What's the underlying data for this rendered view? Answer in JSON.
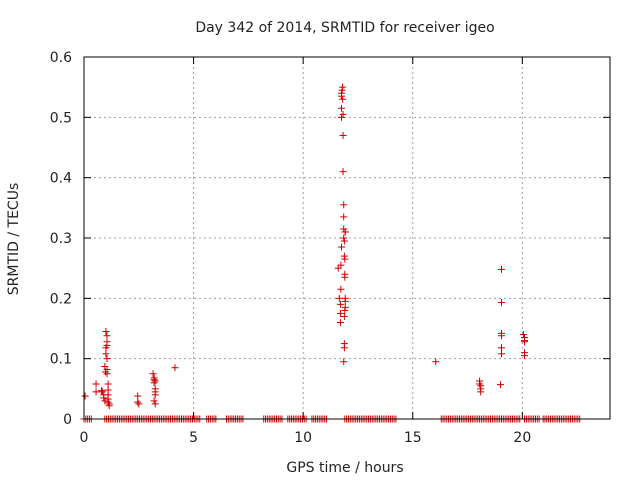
{
  "chart_data": {
    "type": "scatter",
    "title": "Day 342 of 2014, SRMTID for receiver igeo",
    "xlabel": "GPS time / hours",
    "ylabel": "SRMTID / TECUs",
    "xlim": [
      0,
      24
    ],
    "ylim": [
      0,
      0.6
    ],
    "xticks": [
      0,
      5,
      10,
      15,
      20
    ],
    "yticks": [
      0,
      0.1,
      0.2,
      0.3,
      0.4,
      0.5,
      0.6
    ],
    "xtick_labels": [
      "0",
      "5",
      "10",
      "15",
      "20"
    ],
    "ytick_labels": [
      "0",
      "0.1",
      "0.2",
      "0.3",
      "0.4",
      "0.5",
      "0.6"
    ],
    "grid": true,
    "marker_color": "#cc0000",
    "series": [
      {
        "name": "SRMTID",
        "marker": "+",
        "points": [
          [
            0.05,
            0.038
          ],
          [
            0.55,
            0.058
          ],
          [
            0.55,
            0.045
          ],
          [
            0.8,
            0.047
          ],
          [
            0.85,
            0.045
          ],
          [
            0.9,
            0.04
          ],
          [
            0.9,
            0.035
          ],
          [
            0.95,
            0.03
          ],
          [
            0.95,
            0.087
          ],
          [
            0.98,
            0.078
          ],
          [
            1.0,
            0.108
          ],
          [
            1.0,
            0.118
          ],
          [
            1.0,
            0.145
          ],
          [
            1.05,
            0.138
          ],
          [
            1.05,
            0.128
          ],
          [
            1.05,
            0.122
          ],
          [
            1.05,
            0.1
          ],
          [
            1.05,
            0.082
          ],
          [
            1.05,
            0.075
          ],
          [
            1.1,
            0.058
          ],
          [
            1.1,
            0.048
          ],
          [
            1.1,
            0.04
          ],
          [
            1.1,
            0.033
          ],
          [
            1.1,
            0.028
          ],
          [
            1.15,
            0.025
          ],
          [
            1.15,
            0.022
          ],
          [
            2.45,
            0.038
          ],
          [
            2.45,
            0.028
          ],
          [
            2.5,
            0.025
          ],
          [
            3.15,
            0.075
          ],
          [
            3.2,
            0.068
          ],
          [
            3.2,
            0.065
          ],
          [
            3.2,
            0.06
          ],
          [
            3.25,
            0.05
          ],
          [
            3.25,
            0.045
          ],
          [
            3.25,
            0.04
          ],
          [
            3.2,
            0.03
          ],
          [
            3.25,
            0.025
          ],
          [
            3.25,
            0.063
          ],
          [
            4.15,
            0.085
          ],
          [
            11.6,
            0.25
          ],
          [
            11.65,
            0.2
          ],
          [
            11.7,
            0.19
          ],
          [
            11.7,
            0.175
          ],
          [
            11.7,
            0.16
          ],
          [
            11.72,
            0.215
          ],
          [
            11.72,
            0.255
          ],
          [
            11.75,
            0.285
          ],
          [
            11.75,
            0.5
          ],
          [
            11.75,
            0.515
          ],
          [
            11.75,
            0.535
          ],
          [
            11.75,
            0.54
          ],
          [
            11.78,
            0.545
          ],
          [
            11.8,
            0.55
          ],
          [
            11.8,
            0.53
          ],
          [
            11.82,
            0.505
          ],
          [
            11.82,
            0.47
          ],
          [
            11.82,
            0.41
          ],
          [
            11.85,
            0.355
          ],
          [
            11.85,
            0.335
          ],
          [
            11.85,
            0.315
          ],
          [
            11.85,
            0.3
          ],
          [
            11.88,
            0.295
          ],
          [
            11.88,
            0.27
          ],
          [
            11.9,
            0.265
          ],
          [
            11.9,
            0.24
          ],
          [
            11.9,
            0.235
          ],
          [
            11.92,
            0.31
          ],
          [
            11.92,
            0.31
          ],
          [
            11.92,
            0.2
          ],
          [
            11.92,
            0.195
          ],
          [
            11.92,
            0.185
          ],
          [
            11.9,
            0.18
          ],
          [
            11.88,
            0.17
          ],
          [
            11.88,
            0.125
          ],
          [
            11.88,
            0.118
          ],
          [
            11.85,
            0.095
          ],
          [
            16.05,
            0.095
          ],
          [
            18.05,
            0.063
          ],
          [
            18.05,
            0.058
          ],
          [
            18.1,
            0.055
          ],
          [
            18.1,
            0.05
          ],
          [
            18.1,
            0.045
          ],
          [
            19.0,
            0.057
          ],
          [
            19.05,
            0.108
          ],
          [
            19.05,
            0.118
          ],
          [
            19.05,
            0.138
          ],
          [
            19.05,
            0.142
          ],
          [
            19.05,
            0.193
          ],
          [
            19.05,
            0.248
          ],
          [
            20.05,
            0.14
          ],
          [
            20.1,
            0.135
          ],
          [
            20.1,
            0.13
          ],
          [
            20.1,
            0.128
          ],
          [
            20.1,
            0.11
          ],
          [
            20.1,
            0.105
          ]
        ],
        "zero_runs": [
          [
            0.0,
            0.4
          ],
          [
            0.95,
            5.3
          ],
          [
            5.6,
            6.05
          ],
          [
            6.5,
            7.3
          ],
          [
            8.2,
            9.1
          ],
          [
            9.3,
            10.2
          ],
          [
            10.4,
            11.1
          ],
          [
            11.9,
            14.25
          ],
          [
            16.3,
            19.95
          ],
          [
            20.1,
            20.8
          ],
          [
            20.95,
            22.65
          ]
        ]
      }
    ]
  }
}
